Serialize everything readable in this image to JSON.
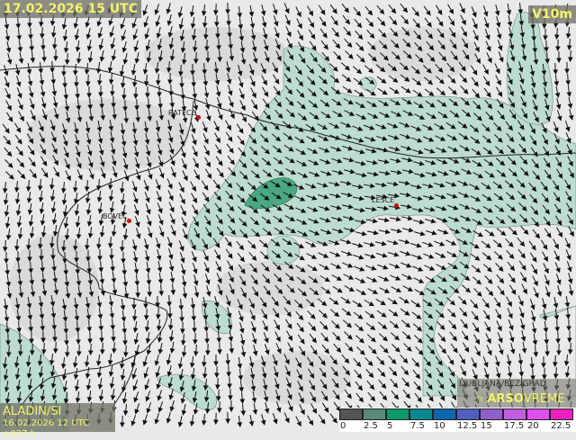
{
  "header": {
    "valid_time": "17.02.2026 15 UTC",
    "parameter": "V10m"
  },
  "model": {
    "name": "ALADIN/SI",
    "run": "16.02.2026 12 UTC +027 h"
  },
  "brand": {
    "station": "LJUBLJANA/BEZIGRAD",
    "logo_bold": "ARSO",
    "logo_rest": "VREME"
  },
  "cities": [
    {
      "name": "RATECE"
    },
    {
      "name": "BOVEC"
    },
    {
      "name": "LESCE"
    }
  ],
  "legend": {
    "labels": [
      "0",
      "2.5",
      "5",
      "7.5",
      "10",
      "12.5",
      "15",
      "17.5",
      "20",
      "22.5"
    ],
    "colors": [
      "#555555",
      "#5a8a78",
      "#0a9a6a",
      "#088890",
      "#0a66b0",
      "#5060c0",
      "#9060c8",
      "#c060e0",
      "#e050f0",
      "#f020c0"
    ]
  },
  "colors": {
    "shade": "#bcdccf",
    "shade_strong": "#4aa882",
    "arrow": "#111111",
    "border": "#222222"
  }
}
